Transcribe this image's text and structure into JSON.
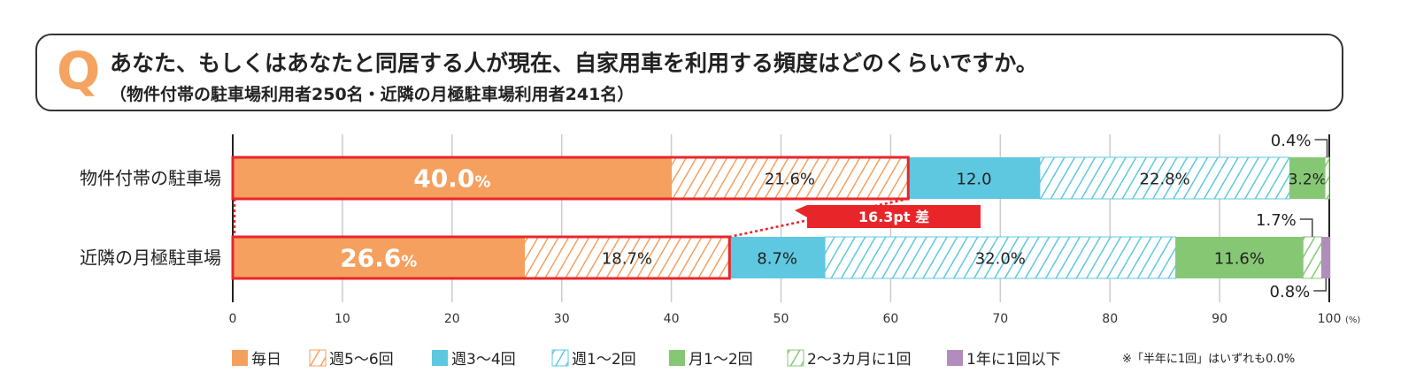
{
  "question": {
    "mark": "Q",
    "text": "あなた、もしくはあなたと同居する人が現在、自家用車を利用する頻度はどのくらいですか。",
    "sub": "（物件付帯の駐車場利用者250名・近隣の月極駐車場利用者241名）"
  },
  "chart_data": {
    "type": "bar",
    "orientation": "horizontal",
    "stacked": true,
    "categories": [
      "物件付帯の駐車場",
      "近隣の月極駐車場"
    ],
    "xlim": [
      0,
      100
    ],
    "xticks": [
      0,
      10,
      20,
      30,
      40,
      50,
      60,
      70,
      80,
      90,
      100
    ],
    "xunit": "(%)",
    "grid": true,
    "series": [
      {
        "name": "毎日",
        "values": [
          40.0,
          26.6
        ],
        "color": "#f5a05e",
        "hatch": false,
        "labels": [
          "40.0%",
          "26.6%"
        ]
      },
      {
        "name": "週5～6回",
        "values": [
          21.6,
          18.7
        ],
        "color": "#f5a05e",
        "hatch": true,
        "labels": [
          "21.6%",
          "18.7%"
        ]
      },
      {
        "name": "週3～4回",
        "values": [
          12.0,
          8.7
        ],
        "color": "#5ec8e0",
        "hatch": false,
        "labels": [
          "12.0",
          "8.7%"
        ]
      },
      {
        "name": "週1～2回",
        "values": [
          22.8,
          32.0
        ],
        "color": "#5ec8e0",
        "hatch": true,
        "labels": [
          "22.8%",
          "32.0%"
        ]
      },
      {
        "name": "月1～2回",
        "values": [
          3.2,
          11.6
        ],
        "color": "#86c774",
        "hatch": false,
        "labels": [
          "3.2%",
          "11.6%"
        ]
      },
      {
        "name": "2～3カ月に1回",
        "values": [
          0.4,
          1.7
        ],
        "color": "#86c774",
        "hatch": true,
        "labels": [
          "0.4%",
          "1.7%"
        ]
      },
      {
        "name": "1年に1回以下",
        "values": [
          0,
          0.8
        ],
        "color": "#b08dbb",
        "hatch": false,
        "labels": [
          "",
          "0.8%"
        ]
      }
    ],
    "annotation": "16.3pt 差",
    "footnote": "※「半年に1回」はいずれも0.0%",
    "legend": "bottom"
  }
}
